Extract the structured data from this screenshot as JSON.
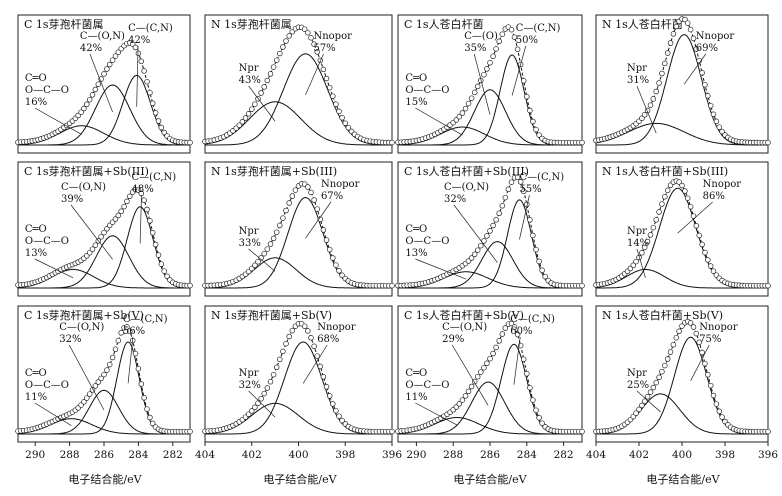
{
  "figure": {
    "x_axis_labels": [
      "电子结合能/eV",
      "电子结合能/eV",
      "电子结合能/eV",
      "电子结合能/eV"
    ]
  },
  "chart_data": [
    {
      "type": "line",
      "title": "C 1s芽孢杆菌属",
      "x_ticks": [
        290,
        288,
        286,
        284,
        282
      ],
      "xlim": [
        291,
        281
      ],
      "peaks": [
        {
          "center": 284.1,
          "width": 0.8,
          "height": 0.58,
          "label": [
            "C—(C,N)",
            "42%"
          ]
        },
        {
          "center": 285.5,
          "width": 1.0,
          "height": 0.5,
          "label": [
            "C—(O,N)",
            "42%"
          ]
        },
        {
          "center": 287.3,
          "width": 1.3,
          "height": 0.16,
          "label": [
            "C═O",
            "O—C—O",
            "16%"
          ]
        }
      ]
    },
    {
      "type": "line",
      "title": "N 1s芽孢杆菌属",
      "x_ticks": [
        404,
        402,
        400,
        398,
        396
      ],
      "xlim": [
        404,
        396
      ],
      "peaks": [
        {
          "center": 399.7,
          "width": 0.95,
          "height": 0.76,
          "label": [
            "Nnopor",
            "57%"
          ]
        },
        {
          "center": 401.0,
          "width": 1.1,
          "height": 0.36,
          "label": [
            "Npr",
            "43%"
          ]
        }
      ]
    },
    {
      "type": "line",
      "title": "C 1s人苍白杆菌",
      "x_ticks": [
        290,
        288,
        286,
        284,
        282
      ],
      "xlim": [
        291,
        281
      ],
      "peaks": [
        {
          "center": 284.8,
          "width": 0.65,
          "height": 0.75,
          "label": [
            "C—(C,N)",
            "50%"
          ]
        },
        {
          "center": 286.0,
          "width": 0.85,
          "height": 0.46,
          "label": [
            "C—(O)",
            "35%"
          ]
        },
        {
          "center": 287.5,
          "width": 1.2,
          "height": 0.15,
          "label": [
            "C═O",
            "O—C—O",
            "15%"
          ]
        }
      ]
    },
    {
      "type": "line",
      "title": "N 1s人苍白杆菌",
      "x_ticks": [
        404,
        402,
        400,
        398,
        396
      ],
      "xlim": [
        404,
        396
      ],
      "peaks": [
        {
          "center": 399.9,
          "width": 0.8,
          "height": 0.92,
          "label": [
            "Nnopor",
            "69%"
          ]
        },
        {
          "center": 401.2,
          "width": 1.3,
          "height": 0.18,
          "label": [
            "Npr",
            "31%"
          ]
        }
      ]
    },
    {
      "type": "line",
      "title": "C 1s芽孢杆菌属+Sb(III)",
      "x_ticks": [
        290,
        288,
        286,
        284,
        282
      ],
      "xlim": [
        291,
        281
      ],
      "peaks": [
        {
          "center": 283.9,
          "width": 0.75,
          "height": 0.7,
          "label": [
            "C—(C,N)",
            "48%"
          ]
        },
        {
          "center": 285.5,
          "width": 0.95,
          "height": 0.45,
          "label": [
            "C—(O,N)",
            "39%"
          ]
        },
        {
          "center": 287.8,
          "width": 1.2,
          "height": 0.16,
          "label": [
            "C═O",
            "O—C—O",
            "13%"
          ]
        }
      ]
    },
    {
      "type": "line",
      "title": "N 1s芽孢杆菌属+Sb(III)",
      "x_ticks": [
        404,
        402,
        400,
        398,
        396
      ],
      "xlim": [
        404,
        396
      ],
      "peaks": [
        {
          "center": 399.7,
          "width": 0.75,
          "height": 0.78,
          "label": [
            "Nnopor",
            "67%"
          ]
        },
        {
          "center": 401.0,
          "width": 0.9,
          "height": 0.26,
          "label": [
            "Npr",
            "33%"
          ]
        }
      ]
    },
    {
      "type": "line",
      "title": "C 1s人苍白杆菌+Sb(III)",
      "x_ticks": [
        290,
        288,
        286,
        284,
        282
      ],
      "xlim": [
        291,
        281
      ],
      "peaks": [
        {
          "center": 284.4,
          "width": 0.65,
          "height": 0.76,
          "label": [
            "C—(C,N)",
            "55%"
          ]
        },
        {
          "center": 285.6,
          "width": 0.85,
          "height": 0.4,
          "label": [
            "C—(O,N)",
            "32%"
          ]
        },
        {
          "center": 287.3,
          "width": 1.2,
          "height": 0.14,
          "label": [
            "C═O",
            "O—C—O",
            "13%"
          ]
        }
      ]
    },
    {
      "type": "line",
      "title": "N 1s人苍白杆菌+Sb(III)",
      "x_ticks": [
        404,
        402,
        400,
        398,
        396
      ],
      "xlim": [
        404,
        396
      ],
      "peaks": [
        {
          "center": 400.2,
          "width": 0.85,
          "height": 0.86,
          "label": [
            "Nnopor",
            "86%"
          ]
        },
        {
          "center": 401.7,
          "width": 0.9,
          "height": 0.16,
          "label": [
            "Npr",
            "14%"
          ]
        }
      ]
    },
    {
      "type": "line",
      "title": "C 1s芽孢杆菌属+Sb(V)",
      "x_ticks": [
        290,
        288,
        286,
        284,
        282
      ],
      "xlim": [
        291,
        281
      ],
      "peaks": [
        {
          "center": 284.6,
          "width": 0.65,
          "height": 0.78,
          "label": [
            "C—(C,N)",
            "56%"
          ]
        },
        {
          "center": 286.0,
          "width": 0.85,
          "height": 0.37,
          "label": [
            "C—(O,N)",
            "32%"
          ]
        },
        {
          "center": 287.9,
          "width": 1.2,
          "height": 0.13,
          "label": [
            "C═O",
            "O—C—O",
            "11%"
          ]
        }
      ]
    },
    {
      "type": "line",
      "title": "N 1s芽孢杆菌属+Sb(V)",
      "x_ticks": [
        404,
        402,
        400,
        398,
        396
      ],
      "xlim": [
        404,
        396
      ],
      "peaks": [
        {
          "center": 399.8,
          "width": 0.8,
          "height": 0.78,
          "label": [
            "Nnopor",
            "68%"
          ]
        },
        {
          "center": 401.0,
          "width": 1.0,
          "height": 0.26,
          "label": [
            "Npr",
            "32%"
          ]
        }
      ]
    },
    {
      "type": "line",
      "title": "C 1s人苍白杆菌+Sb(V)",
      "x_ticks": [
        290,
        288,
        286,
        284,
        282
      ],
      "xlim": [
        291,
        281
      ],
      "peaks": [
        {
          "center": 284.7,
          "width": 0.7,
          "height": 0.76,
          "label": [
            "C—(C,N)",
            "60%"
          ]
        },
        {
          "center": 286.1,
          "width": 0.9,
          "height": 0.44,
          "label": [
            "C—(O,N)",
            "29%"
          ]
        },
        {
          "center": 287.8,
          "width": 1.2,
          "height": 0.14,
          "label": [
            "C═O",
            "O—C—O",
            "11%"
          ]
        }
      ]
    },
    {
      "type": "line",
      "title": "N 1s人苍白杆菌+Sb(V)",
      "x_ticks": [
        404,
        402,
        400,
        398,
        396
      ],
      "xlim": [
        404,
        396
      ],
      "peaks": [
        {
          "center": 399.6,
          "width": 0.75,
          "height": 0.82,
          "label": [
            "Nnopor",
            "75%"
          ]
        },
        {
          "center": 401.0,
          "width": 0.9,
          "height": 0.34,
          "label": [
            "Npr",
            "25%"
          ]
        }
      ]
    }
  ]
}
